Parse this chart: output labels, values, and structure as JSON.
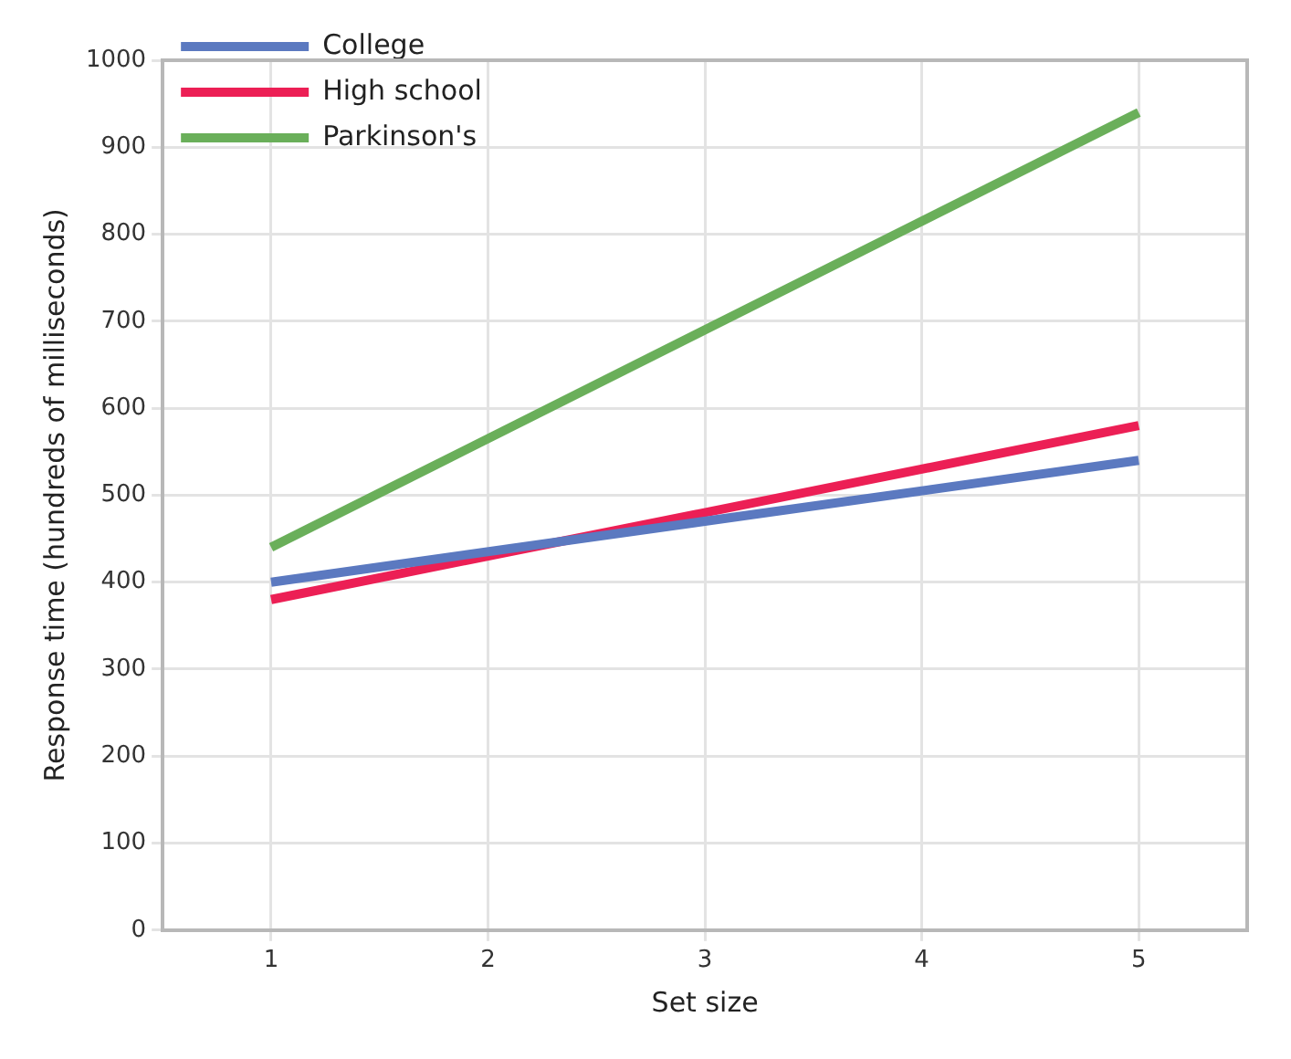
{
  "chart_data": {
    "type": "line",
    "xlabel": "Set size",
    "ylabel": "Response time (hundreds of milliseconds)",
    "x": [
      1,
      5
    ],
    "series": [
      {
        "name": "College",
        "color": "#5b79c0",
        "values": [
          400,
          540
        ]
      },
      {
        "name": "High school",
        "color": "#ec1f55",
        "values": [
          380,
          580
        ]
      },
      {
        "name": "Parkinson's",
        "color": "#6aaf5a",
        "values": [
          440,
          940
        ]
      }
    ],
    "xlim": [
      0.5,
      5.5
    ],
    "xticks": [
      1,
      2,
      3,
      4,
      5
    ],
    "ylim": [
      0,
      1000
    ],
    "yticks": [
      0,
      100,
      200,
      300,
      400,
      500,
      600,
      700,
      800,
      900,
      1000
    ],
    "grid": true,
    "legend": "top left",
    "marker": "none",
    "line_style": "solid"
  }
}
